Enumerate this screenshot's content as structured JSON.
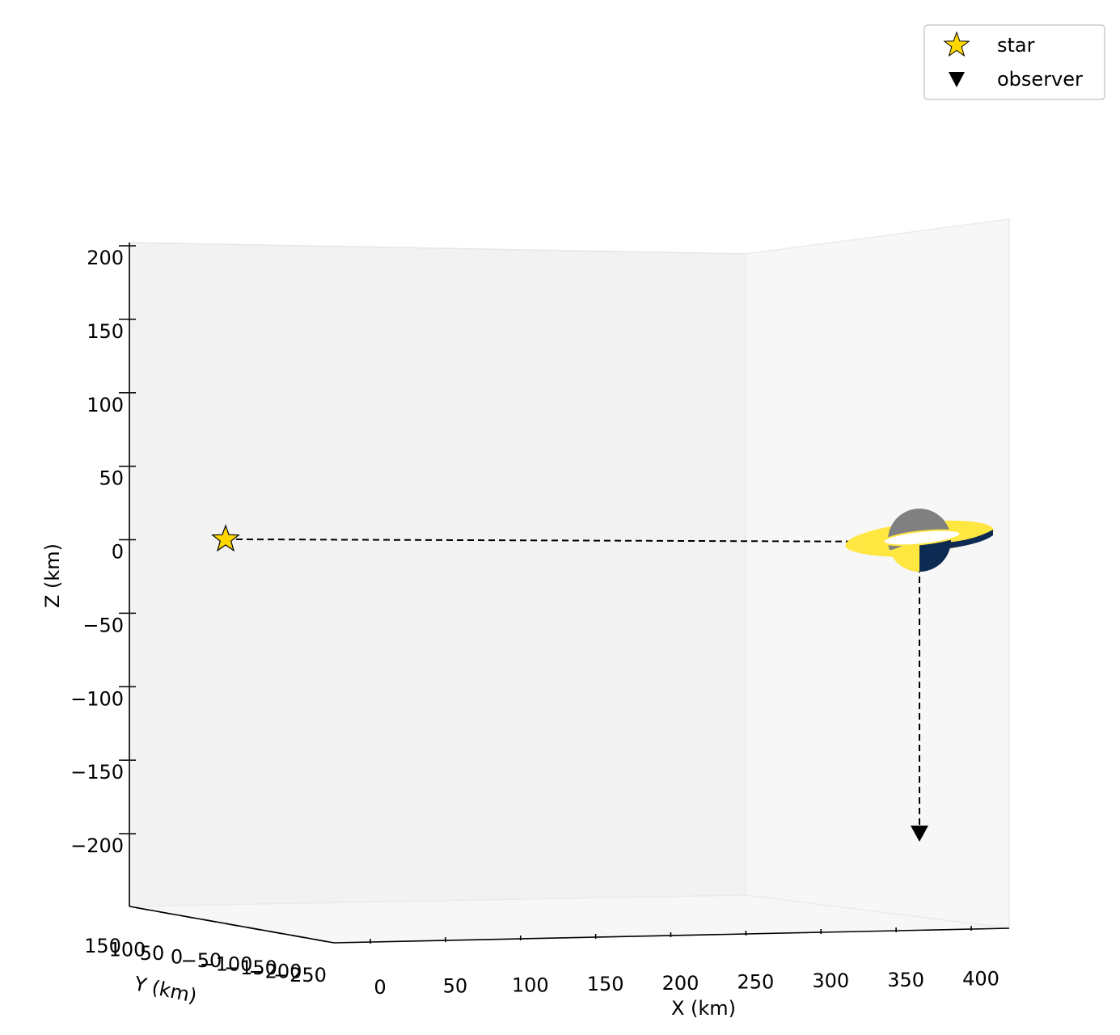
{
  "chart_data": {
    "type": "scatter",
    "projection": "3d",
    "x_axis": {
      "label": "X (km)",
      "ticks": [
        0,
        50,
        100,
        150,
        200,
        250,
        300,
        350,
        400
      ],
      "tick_labels": [
        "0",
        "50",
        "100",
        "150",
        "200",
        "250",
        "300",
        "350",
        "400"
      ]
    },
    "y_axis": {
      "label": "Y (km)",
      "tick_labels": [
        "150",
        "100",
        "50",
        "0",
        "−50",
        "−100",
        "−150",
        "−200",
        "−250"
      ]
    },
    "z_axis": {
      "label": "Z (km)",
      "ticks": [
        200,
        150,
        100,
        50,
        0,
        -50,
        -100,
        -150,
        -200
      ],
      "tick_labels": [
        "200",
        "150",
        "100",
        "50",
        "0",
        "−50",
        "−100",
        "−150",
        "−200"
      ]
    },
    "series": [
      {
        "name": "star",
        "marker": "star",
        "color": "#ffd700",
        "points": [
          {
            "x": 0,
            "y": 0,
            "z": 0
          }
        ]
      },
      {
        "name": "observer",
        "marker": "triangle-down",
        "color": "#000000",
        "points": [
          {
            "x": 360,
            "y": 0,
            "z": -200
          }
        ]
      }
    ],
    "path": [
      {
        "x": 0,
        "y": 0,
        "z": 0
      },
      {
        "x": 360,
        "y": 0,
        "z": 0
      },
      {
        "x": 360,
        "y": 0,
        "z": -200
      }
    ],
    "body": {
      "x": 360,
      "y": 0,
      "z": 0,
      "type": "ringed-sphere",
      "colors": {
        "lit": "#ffe640",
        "dark": "#0d2a52",
        "unlit_gray": "#808080"
      }
    },
    "legend": {
      "position": "top-right",
      "entries": [
        {
          "label": "star",
          "marker": "star",
          "color": "#ffd700"
        },
        {
          "label": "observer",
          "marker": "triangle-down",
          "color": "#000000"
        }
      ]
    },
    "grid": false,
    "pane_colors": {
      "back": "#f2f2f2",
      "side": "#f7f7f7",
      "floor": "#f7f7f7"
    }
  }
}
